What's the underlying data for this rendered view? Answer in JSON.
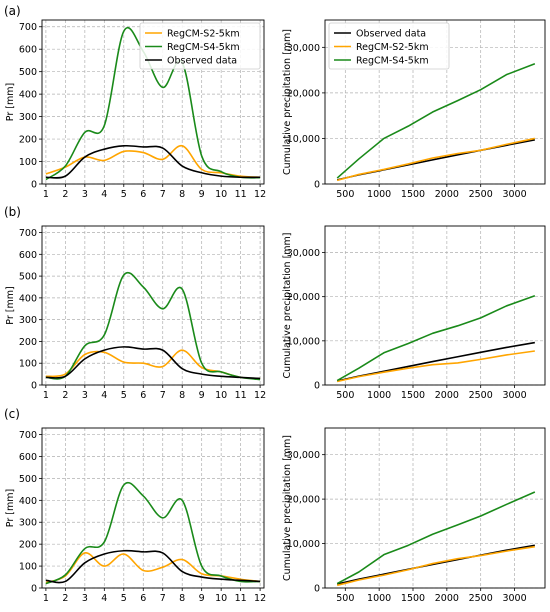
{
  "colors": {
    "observed": "#000000",
    "s2": "#ffa500",
    "s4": "#1a8a1a",
    "grid": "#b0b0b0"
  },
  "panel_labels": [
    "(a)",
    "(b)",
    "(c)"
  ],
  "chart_data": [
    {
      "id": "a-left",
      "type": "line",
      "ylabel": "Pr [mm]",
      "xlim": [
        0.8,
        12.2
      ],
      "ylim": [
        0,
        730
      ],
      "xticks": [
        1,
        2,
        3,
        4,
        5,
        6,
        7,
        8,
        9,
        10,
        11,
        12
      ],
      "yticks": [
        0,
        100,
        200,
        300,
        400,
        500,
        600,
        700
      ],
      "legend": "top-right",
      "series": [
        {
          "name": "RegCM-S2-5km",
          "color": "s2",
          "x": [
            1,
            2,
            3,
            4,
            5,
            6,
            7,
            8,
            9,
            10,
            11,
            12
          ],
          "y": [
            45,
            75,
            120,
            105,
            145,
            140,
            110,
            170,
            65,
            50,
            35,
            30
          ]
        },
        {
          "name": "RegCM-S4-5km",
          "color": "s4",
          "x": [
            1,
            2,
            3,
            4,
            5,
            6,
            7,
            8,
            9,
            10,
            11,
            12
          ],
          "y": [
            20,
            80,
            230,
            260,
            680,
            590,
            430,
            540,
            125,
            55,
            30,
            28
          ]
        },
        {
          "name": "Observed data",
          "color": "observed",
          "x": [
            1,
            2,
            3,
            4,
            5,
            6,
            7,
            8,
            9,
            10,
            11,
            12
          ],
          "y": [
            30,
            35,
            120,
            155,
            170,
            165,
            160,
            80,
            50,
            35,
            30,
            30
          ]
        }
      ]
    },
    {
      "id": "a-right",
      "type": "line",
      "ylabel": "Cumulative precipitation [mm]",
      "xlim": [
        200,
        3450
      ],
      "ylim": [
        0,
        36000
      ],
      "xticks": [
        500,
        1000,
        1500,
        2000,
        2500,
        3000
      ],
      "yticks": [
        0,
        10000,
        20000,
        30000
      ],
      "ytick_labels": [
        "0",
        "10,000",
        "20,000",
        "30,000"
      ],
      "legend": "top-left",
      "series": [
        {
          "name": "Observed data",
          "color": "observed",
          "x": [
            380,
            700,
            1070,
            1430,
            1790,
            2160,
            2500,
            2880,
            3300
          ],
          "y": [
            900,
            2000,
            3100,
            4200,
            5300,
            6400,
            7400,
            8500,
            9700
          ]
        },
        {
          "name": "RegCM-S2-5km",
          "color": "s2",
          "x": [
            380,
            700,
            1070,
            1430,
            1790,
            2160,
            2500,
            2880,
            3300
          ],
          "y": [
            800,
            2100,
            3200,
            4400,
            5700,
            6700,
            7400,
            8700,
            10000
          ]
        },
        {
          "name": "RegCM-S4-5km",
          "color": "s4",
          "x": [
            380,
            700,
            1070,
            1430,
            1790,
            2160,
            2500,
            2880,
            3300
          ],
          "y": [
            1300,
            5500,
            10000,
            12700,
            15800,
            18300,
            20700,
            24000,
            26400
          ]
        }
      ]
    },
    {
      "id": "b-left",
      "type": "line",
      "ylabel": "Pr [mm]",
      "xlim": [
        0.8,
        12.2
      ],
      "ylim": [
        0,
        730
      ],
      "xticks": [
        1,
        2,
        3,
        4,
        5,
        6,
        7,
        8,
        9,
        10,
        11,
        12
      ],
      "yticks": [
        0,
        100,
        200,
        300,
        400,
        500,
        600,
        700
      ],
      "series": [
        {
          "name": "RegCM-S2-5km",
          "color": "s2",
          "x": [
            1,
            2,
            3,
            4,
            5,
            6,
            7,
            8,
            9,
            10,
            11,
            12
          ],
          "y": [
            40,
            50,
            140,
            150,
            105,
            100,
            85,
            160,
            80,
            60,
            35,
            30
          ]
        },
        {
          "name": "RegCM-S4-5km",
          "color": "s4",
          "x": [
            1,
            2,
            3,
            4,
            5,
            6,
            7,
            8,
            9,
            10,
            11,
            12
          ],
          "y": [
            35,
            40,
            180,
            230,
            505,
            450,
            350,
            440,
            100,
            60,
            35,
            25
          ]
        },
        {
          "name": "Observed data",
          "color": "observed",
          "x": [
            1,
            2,
            3,
            4,
            5,
            6,
            7,
            8,
            9,
            10,
            11,
            12
          ],
          "y": [
            35,
            40,
            120,
            160,
            175,
            165,
            160,
            75,
            50,
            40,
            35,
            30
          ]
        }
      ]
    },
    {
      "id": "b-right",
      "type": "line",
      "ylabel": "Cumulative precipitation [mm]",
      "xlim": [
        200,
        3450
      ],
      "ylim": [
        0,
        36000
      ],
      "xticks": [
        500,
        1000,
        1500,
        2000,
        2500,
        3000
      ],
      "yticks": [
        0,
        10000,
        20000,
        30000
      ],
      "ytick_labels": [
        "0",
        "10,000",
        "20,000",
        "30,000"
      ],
      "series": [
        {
          "name": "Observed data",
          "color": "observed",
          "x": [
            380,
            700,
            1070,
            1430,
            1790,
            2160,
            2500,
            2880,
            3300
          ],
          "y": [
            900,
            2000,
            3100,
            4200,
            5300,
            6400,
            7400,
            8500,
            9600
          ]
        },
        {
          "name": "RegCM-S2-5km",
          "color": "s2",
          "x": [
            380,
            700,
            1070,
            1430,
            1790,
            2160,
            2500,
            2880,
            3300
          ],
          "y": [
            800,
            1900,
            2900,
            3800,
            4600,
            5000,
            5800,
            6800,
            7700
          ]
        },
        {
          "name": "RegCM-S4-5km",
          "color": "s4",
          "x": [
            380,
            700,
            1070,
            1430,
            1790,
            2160,
            2500,
            2880,
            3300
          ],
          "y": [
            1000,
            3800,
            7300,
            9400,
            11700,
            13400,
            15200,
            17900,
            20200
          ]
        }
      ]
    },
    {
      "id": "c-left",
      "type": "line",
      "ylabel": "Pr [mm]",
      "xlim": [
        0.8,
        12.2
      ],
      "ylim": [
        0,
        730
      ],
      "xticks": [
        1,
        2,
        3,
        4,
        5,
        6,
        7,
        8,
        9,
        10,
        11,
        12
      ],
      "yticks": [
        0,
        100,
        200,
        300,
        400,
        500,
        600,
        700
      ],
      "series": [
        {
          "name": "RegCM-S2-5km",
          "color": "s2",
          "x": [
            1,
            2,
            3,
            4,
            5,
            6,
            7,
            8,
            9,
            10,
            11,
            12
          ],
          "y": [
            25,
            55,
            160,
            100,
            155,
            80,
            95,
            130,
            65,
            55,
            40,
            30
          ]
        },
        {
          "name": "RegCM-S4-5km",
          "color": "s4",
          "x": [
            1,
            2,
            3,
            4,
            5,
            6,
            7,
            8,
            9,
            10,
            11,
            12
          ],
          "y": [
            20,
            60,
            180,
            210,
            470,
            420,
            320,
            400,
            100,
            55,
            30,
            30
          ]
        },
        {
          "name": "Observed data",
          "color": "observed",
          "x": [
            1,
            2,
            3,
            4,
            5,
            6,
            7,
            8,
            9,
            10,
            11,
            12
          ],
          "y": [
            35,
            30,
            115,
            155,
            170,
            165,
            160,
            75,
            50,
            40,
            35,
            30
          ]
        }
      ]
    },
    {
      "id": "c-right",
      "type": "line",
      "ylabel": "Cumulative precipitation [mm]",
      "xlim": [
        200,
        3450
      ],
      "ylim": [
        0,
        36000
      ],
      "xticks": [
        500,
        1000,
        1500,
        2000,
        2500,
        3000
      ],
      "yticks": [
        0,
        10000,
        20000,
        30000
      ],
      "ytick_labels": [
        "0",
        "10,000",
        "20,000",
        "30,000"
      ],
      "series": [
        {
          "name": "Observed data",
          "color": "observed",
          "x": [
            380,
            700,
            1070,
            1430,
            1790,
            2160,
            2500,
            2880,
            3300
          ],
          "y": [
            900,
            2000,
            3100,
            4200,
            5300,
            6400,
            7400,
            8500,
            9600
          ]
        },
        {
          "name": "RegCM-S2-5km",
          "color": "s2",
          "x": [
            380,
            700,
            1070,
            1430,
            1790,
            2160,
            2500,
            2880,
            3300
          ],
          "y": [
            600,
            1800,
            2900,
            4100,
            5500,
            6600,
            7300,
            8300,
            9300
          ]
        },
        {
          "name": "RegCM-S4-5km",
          "color": "s4",
          "x": [
            380,
            700,
            1070,
            1430,
            1790,
            2160,
            2500,
            2880,
            3300
          ],
          "y": [
            1000,
            3600,
            7500,
            9600,
            12100,
            14200,
            16200,
            18800,
            21600
          ]
        }
      ]
    }
  ]
}
